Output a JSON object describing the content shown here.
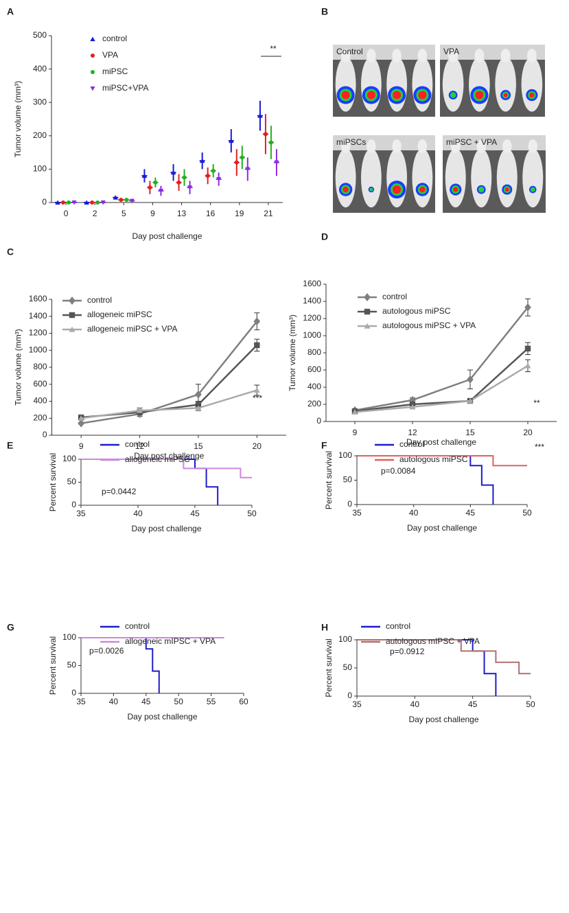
{
  "chart_data": [
    {
      "type": "scatter",
      "label": "A",
      "ylabel": "Tumor volume (mm³)",
      "xlabel": "Day post challenge",
      "categories": [
        "0",
        "2",
        "5",
        "9",
        "13",
        "16",
        "19",
        "21"
      ],
      "ylim": [
        0,
        500
      ],
      "yticks": [
        0,
        100,
        200,
        300,
        400,
        500
      ],
      "series": [
        {
          "name": "control",
          "color": "#1a1ad8",
          "marker": "triangle-up",
          "values": [
            0,
            0,
            15,
            80,
            90,
            125,
            185,
            260
          ],
          "errors": [
            0,
            0,
            5,
            20,
            25,
            25,
            35,
            45
          ]
        },
        {
          "name": "VPA",
          "color": "#e02020",
          "marker": "circle",
          "values": [
            0,
            0,
            8,
            45,
            60,
            80,
            120,
            205
          ],
          "errors": [
            0,
            0,
            3,
            20,
            25,
            25,
            40,
            60
          ]
        },
        {
          "name": "miPSC",
          "color": "#22b022",
          "marker": "circle",
          "values": [
            0,
            0,
            8,
            60,
            75,
            95,
            135,
            180
          ],
          "errors": [
            0,
            0,
            3,
            15,
            25,
            20,
            35,
            50
          ]
        },
        {
          "name": "miPSC+VPA",
          "color": "#8a2be2",
          "marker": "triangle-down",
          "values": [
            0,
            0,
            5,
            35,
            45,
            70,
            100,
            120
          ],
          "errors": [
            0,
            0,
            3,
            15,
            20,
            20,
            35,
            40
          ]
        }
      ],
      "annotations": [
        {
          "text": "**"
        }
      ]
    },
    {
      "type": "line",
      "label": "C",
      "ylabel": "Tumor volume (mm³)",
      "xlabel": "Day post challenge",
      "categories": [
        "9",
        "12",
        "15",
        "20"
      ],
      "ylim": [
        0,
        1600
      ],
      "yticks": [
        0,
        200,
        400,
        600,
        800,
        1000,
        1200,
        1400,
        1600
      ],
      "series": [
        {
          "name": "control",
          "color": "#7f7f7f",
          "marker": "diamond",
          "values": [
            140,
            250,
            480,
            1340
          ],
          "errors": [
            10,
            30,
            120,
            100
          ]
        },
        {
          "name": "allogeneic miPSC",
          "color": "#555555",
          "marker": "square",
          "values": [
            210,
            270,
            360,
            1060
          ],
          "errors": [
            15,
            30,
            40,
            70
          ]
        },
        {
          "name": "allogeneic miPSC + VPA",
          "color": "#aaaaaa",
          "marker": "triangle-up",
          "values": [
            200,
            290,
            320,
            530
          ],
          "errors": [
            15,
            30,
            30,
            60
          ]
        }
      ],
      "annotations": [
        {
          "text": "***"
        }
      ]
    },
    {
      "type": "line",
      "label": "D",
      "ylabel": "Tumor volume (mm³)",
      "xlabel": "Day post challenge",
      "categories": [
        "9",
        "12",
        "15",
        "20"
      ],
      "ylim": [
        0,
        1600
      ],
      "yticks": [
        0,
        200,
        400,
        600,
        800,
        1000,
        1200,
        1400,
        1600
      ],
      "series": [
        {
          "name": "control",
          "color": "#7f7f7f",
          "marker": "diamond",
          "values": [
            130,
            250,
            490,
            1330
          ],
          "errors": [
            10,
            25,
            110,
            100
          ]
        },
        {
          "name": "autologous miPSC",
          "color": "#555555",
          "marker": "square",
          "values": [
            120,
            200,
            240,
            850
          ],
          "errors": [
            10,
            25,
            20,
            70
          ]
        },
        {
          "name": "autologous miPSC + VPA",
          "color": "#aaaaaa",
          "marker": "triangle-up",
          "values": [
            110,
            170,
            240,
            650
          ],
          "errors": [
            10,
            20,
            20,
            70
          ]
        }
      ],
      "annotations": [
        {
          "text": "**"
        },
        {
          "text": "***"
        }
      ]
    },
    {
      "type": "step",
      "label": "E",
      "ylabel": "Percent survival",
      "xlabel": "Day post challenge",
      "xlim": [
        35,
        50
      ],
      "xticks": [
        35,
        40,
        45,
        50
      ],
      "ylim": [
        0,
        100
      ],
      "yticks": [
        0,
        50,
        100
      ],
      "series": [
        {
          "name": "control",
          "color": "#1c1cc8",
          "x": [
            35,
            45,
            46,
            47
          ],
          "values": [
            100,
            80,
            40,
            0
          ]
        },
        {
          "name": "allogeneic miPSC",
          "color": "#cc88dd",
          "x": [
            35,
            44,
            49,
            50
          ],
          "values": [
            100,
            80,
            60,
            60
          ]
        }
      ],
      "annotations": [
        {
          "text": "p=0.0442"
        }
      ]
    },
    {
      "type": "step",
      "label": "F",
      "ylabel": "Percent survival",
      "xlabel": "Day post challenge",
      "xlim": [
        35,
        50
      ],
      "xticks": [
        35,
        40,
        45,
        50
      ],
      "ylim": [
        0,
        100
      ],
      "yticks": [
        0,
        50,
        100
      ],
      "series": [
        {
          "name": "control",
          "color": "#1c1cc8",
          "x": [
            35,
            45,
            46,
            47
          ],
          "values": [
            100,
            80,
            40,
            0
          ]
        },
        {
          "name": "autologous miPSC",
          "color": "#e06060",
          "x": [
            35,
            47,
            50
          ],
          "values": [
            100,
            80,
            80
          ]
        }
      ],
      "annotations": [
        {
          "text": "p=0.0084"
        }
      ]
    },
    {
      "type": "step",
      "label": "G",
      "ylabel": "Percent survival",
      "xlabel": "Day post challenge",
      "xlim": [
        35,
        60
      ],
      "xticks": [
        35,
        40,
        45,
        50,
        55,
        60
      ],
      "ylim": [
        0,
        100
      ],
      "yticks": [
        0,
        50,
        100
      ],
      "series": [
        {
          "name": "control",
          "color": "#1c1cc8",
          "x": [
            35,
            45,
            46,
            47
          ],
          "values": [
            100,
            80,
            40,
            0
          ]
        },
        {
          "name": "allogeneic mIPSC + VPA",
          "color": "#cc88dd",
          "x": [
            35,
            57
          ],
          "values": [
            100,
            100
          ]
        }
      ],
      "annotations": [
        {
          "text": "p=0.0026"
        }
      ]
    },
    {
      "type": "step",
      "label": "H",
      "ylabel": "Percent survival",
      "xlabel": "Day post challenge",
      "xlim": [
        35,
        50
      ],
      "xticks": [
        35,
        40,
        45,
        50
      ],
      "ylim": [
        0,
        100
      ],
      "yticks": [
        0,
        50,
        100
      ],
      "series": [
        {
          "name": "control",
          "color": "#1c1cc8",
          "x": [
            35,
            45,
            46,
            47
          ],
          "values": [
            100,
            80,
            40,
            0
          ]
        },
        {
          "name": "autologous mIPSC + VPA",
          "color": "#b07070",
          "x": [
            35,
            44,
            47,
            49,
            50
          ],
          "values": [
            100,
            80,
            60,
            40,
            40
          ]
        }
      ],
      "annotations": [
        {
          "text": "p=0.0912"
        }
      ]
    }
  ],
  "image_panel": {
    "label": "B",
    "images": [
      "Control",
      "VPA",
      "miPSCs",
      "miPSC + VPA"
    ]
  }
}
